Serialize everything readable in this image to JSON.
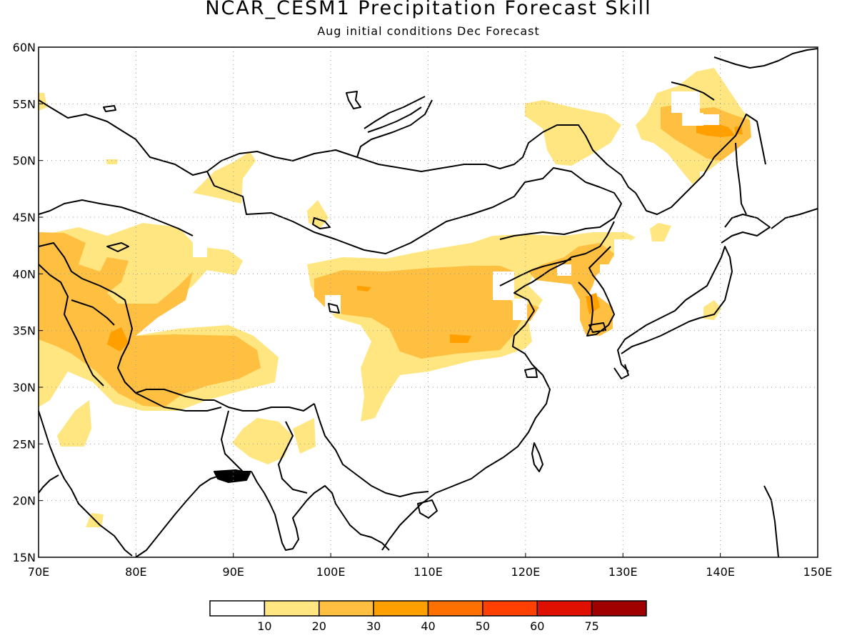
{
  "title": "NCAR_CESM1 Precipitation Forecast Skill",
  "subtitle": "Aug initial conditions  Dec Forecast",
  "map": {
    "lon_range": [
      70,
      150
    ],
    "lat_range": [
      15,
      60
    ],
    "lon_ticks": [
      "70E",
      "80E",
      "90E",
      "100E",
      "110E",
      "120E",
      "130E",
      "140E",
      "150E"
    ],
    "lat_ticks": [
      "15N",
      "20N",
      "25N",
      "30N",
      "35N",
      "40N",
      "45N",
      "50N",
      "55N",
      "60N"
    ],
    "gridlines": "dotted"
  },
  "colorbar": {
    "colors": [
      "#ffffff",
      "#ffe680",
      "#ffbf40",
      "#ffa000",
      "#ff7000",
      "#ff4000",
      "#e01000",
      "#a00000"
    ],
    "labels": [
      "10",
      "20",
      "30",
      "40",
      "50",
      "60",
      "75"
    ]
  }
}
